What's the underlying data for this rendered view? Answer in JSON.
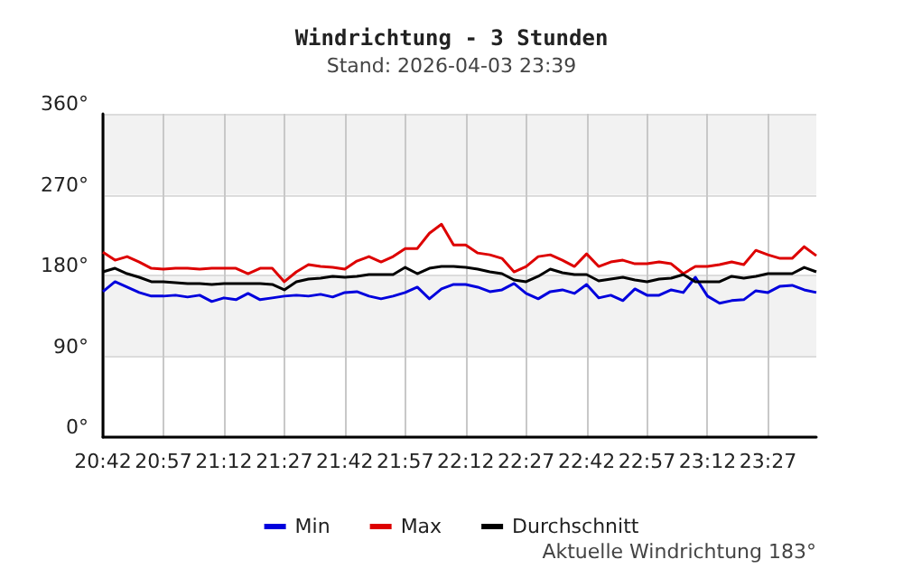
{
  "chart_data": {
    "type": "line",
    "title": "Windrichtung - 3 Stunden",
    "subtitle": "Stand: 2026-04-03 23:39",
    "annotations": [
      "Aktuelle Windrichtung 183°"
    ],
    "x": [
      20.7,
      20.75,
      20.8,
      20.85,
      20.9,
      20.95,
      21.0,
      21.05,
      21.1,
      21.15,
      21.2,
      21.25,
      21.3,
      21.35,
      21.4,
      21.45,
      21.5,
      21.55,
      21.6,
      21.65,
      21.7,
      21.75,
      21.8,
      21.85,
      21.9,
      21.95,
      22.0,
      22.05,
      22.1,
      22.15,
      22.2,
      22.25,
      22.3,
      22.35,
      22.4,
      22.45,
      22.5,
      22.55,
      22.6,
      22.65,
      22.7,
      22.75,
      22.8,
      22.85,
      22.9,
      22.95,
      23.0,
      23.05,
      23.1,
      23.15,
      23.2,
      23.25,
      23.3,
      23.35,
      23.4,
      23.45,
      23.5,
      23.55,
      23.6,
      23.65
    ],
    "series": [
      {
        "name": "Min",
        "color": "#0000dd",
        "values": [
          162,
          173,
          167,
          161,
          157,
          157,
          158,
          156,
          158,
          151,
          155,
          153,
          160,
          153,
          155,
          157,
          158,
          157,
          159,
          156,
          161,
          162,
          157,
          154,
          157,
          161,
          167,
          154,
          165,
          170,
          170,
          167,
          162,
          164,
          171,
          160,
          154,
          162,
          164,
          160,
          170,
          155,
          158,
          152,
          165,
          158,
          158,
          164,
          161,
          178,
          157,
          149,
          152,
          153,
          163,
          161,
          168,
          169,
          164,
          161
        ]
      },
      {
        "name": "Max",
        "color": "#dd0000",
        "values": [
          206,
          197,
          201,
          195,
          188,
          187,
          188,
          188,
          187,
          188,
          188,
          188,
          182,
          188,
          188,
          173,
          184,
          192,
          190,
          189,
          187,
          196,
          201,
          195,
          201,
          210,
          210,
          227,
          237,
          214,
          214,
          205,
          203,
          199,
          184,
          190,
          201,
          203,
          197,
          190,
          204,
          190,
          195,
          197,
          193,
          193,
          195,
          193,
          182,
          190,
          190,
          192,
          195,
          192,
          208,
          203,
          199,
          199,
          212,
          202
        ]
      },
      {
        "name": "Durchschnitt",
        "color": "#000000",
        "values": [
          184,
          188,
          182,
          178,
          173,
          173,
          172,
          171,
          171,
          170,
          171,
          171,
          171,
          171,
          170,
          164,
          173,
          176,
          177,
          179,
          178,
          179,
          181,
          181,
          181,
          189,
          182,
          188,
          190,
          190,
          189,
          187,
          184,
          182,
          175,
          173,
          179,
          187,
          183,
          181,
          181,
          174,
          176,
          178,
          175,
          173,
          176,
          177,
          181,
          173,
          173,
          173,
          179,
          177,
          179,
          182,
          182,
          182,
          189,
          184
        ]
      }
    ],
    "xlim": [
      20.7,
      23.65
    ],
    "xticks": [
      {
        "value": 20.7,
        "label": "20:42"
      },
      {
        "value": 20.95,
        "label": "20:57"
      },
      {
        "value": 21.2,
        "label": "21:12"
      },
      {
        "value": 21.45,
        "label": "21:27"
      },
      {
        "value": 21.7,
        "label": "21:42"
      },
      {
        "value": 21.95,
        "label": "21:57"
      },
      {
        "value": 22.2,
        "label": "22:12"
      },
      {
        "value": 22.45,
        "label": "22:27"
      },
      {
        "value": 22.7,
        "label": "22:42"
      },
      {
        "value": 22.95,
        "label": "22:57"
      },
      {
        "value": 23.2,
        "label": "23:12"
      },
      {
        "value": 23.45,
        "label": "23:27"
      }
    ],
    "ylim": [
      0,
      360
    ],
    "yticks": [
      {
        "value": 0,
        "label": "0°"
      },
      {
        "value": 90,
        "label": "90°"
      },
      {
        "value": 180,
        "label": "180°"
      },
      {
        "value": 270,
        "label": "270°"
      },
      {
        "value": 360,
        "label": "360°"
      }
    ],
    "grid": true,
    "legend": "bottom",
    "marker": "none",
    "line_style": "solid"
  }
}
